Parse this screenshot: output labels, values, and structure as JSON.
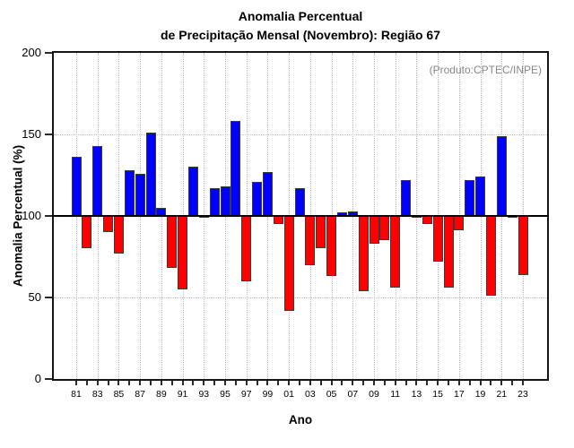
{
  "chart_data": {
    "type": "bar",
    "title_line1": "Anomalia Percentual",
    "title_line2": "de Precipitação Mensal (Novembro): Região 67",
    "annotation": "(Produto:CPTEC/INPE)",
    "xlabel": "Ano",
    "ylabel": "Anomalia Percentual (%)",
    "ylim": [
      0,
      200
    ],
    "baseline": 100,
    "ytick_values": [
      0,
      50,
      100,
      150,
      200
    ],
    "ytick_labels": [
      "0",
      "50",
      "100",
      "150",
      "200"
    ],
    "hgrid_values": [
      50,
      150
    ],
    "grid": "dotted",
    "legend_position": "none",
    "years": [
      1981,
      1982,
      1983,
      1984,
      1985,
      1986,
      1987,
      1988,
      1989,
      1990,
      1991,
      1992,
      1993,
      1994,
      1995,
      1996,
      1997,
      1998,
      1999,
      2000,
      2001,
      2002,
      2003,
      2004,
      2005,
      2006,
      2007,
      2008,
      2009,
      2010,
      2011,
      2012,
      2013,
      2014,
      2015,
      2016,
      2017,
      2018,
      2019,
      2020,
      2021,
      2022,
      2023
    ],
    "xtick_labels": [
      "81",
      "83",
      "85",
      "87",
      "89",
      "91",
      "93",
      "95",
      "97",
      "99",
      "01",
      "03",
      "05",
      "07",
      "09",
      "11",
      "13",
      "15",
      "17",
      "19",
      "21",
      "23"
    ],
    "values": [
      136,
      80,
      143,
      90,
      77,
      128,
      126,
      151,
      105,
      68,
      55,
      130,
      100,
      117,
      118,
      158,
      60,
      121,
      127,
      95,
      42,
      117,
      70,
      80,
      63,
      102,
      103,
      54,
      83,
      85,
      56,
      122,
      99,
      95,
      72,
      56,
      91,
      122,
      124,
      51,
      149,
      99,
      64
    ],
    "colors": {
      "positive": "#0000ff",
      "negative": "#ff0000",
      "bar_border": "#3a3a3a",
      "baseline_line": "#000000",
      "grid": "#bcbcbc",
      "frame": "#151515",
      "tick": "#2a2a2a",
      "annotation_text": "#878787"
    }
  }
}
